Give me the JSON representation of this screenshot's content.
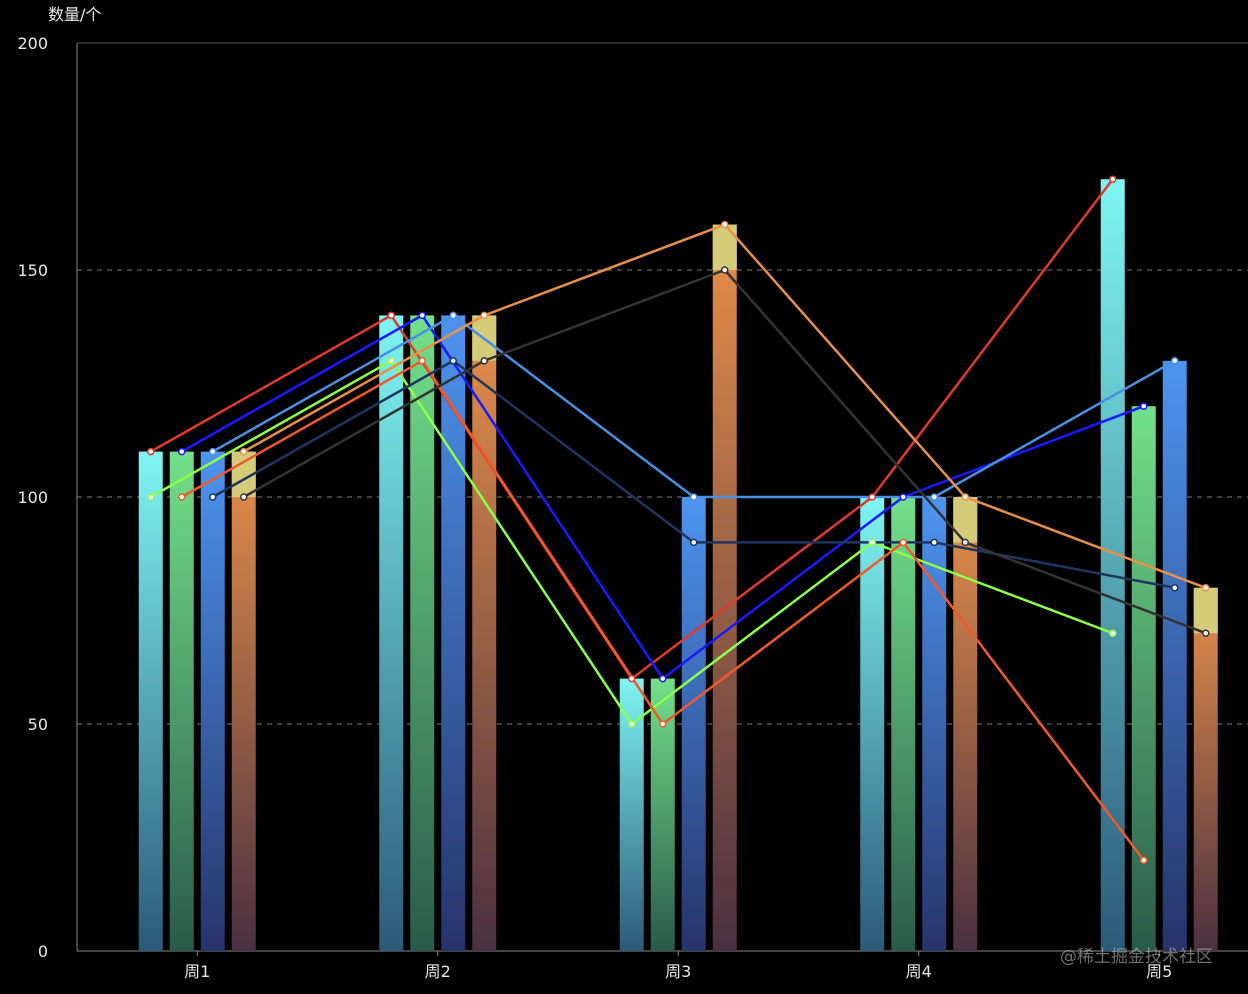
{
  "chart_data": {
    "type": "bar",
    "ylabel": "数量/个",
    "ylim": [
      0,
      200
    ],
    "yticks": [
      0,
      50,
      100,
      150,
      200
    ],
    "categories": [
      "周1",
      "周2",
      "周3",
      "周4",
      "周5"
    ],
    "grid": true,
    "bar_series": [
      {
        "values": [
          110,
          140,
          60,
          100,
          170
        ],
        "top_color": "#7ff5f2",
        "bottom_color": "#2c5a78",
        "bright_top": [
          100,
          0,
          0,
          100,
          70
        ]
      },
      {
        "values": [
          110,
          140,
          60,
          100,
          120
        ],
        "top_color": "#73e08a",
        "bottom_color": "#2a5a4a",
        "bright_top": [
          0,
          0,
          0,
          0,
          0
        ]
      },
      {
        "values": [
          110,
          140,
          100,
          100,
          130
        ],
        "top_color": "#4d94f0",
        "bottom_color": "#27346a",
        "bright_top": [
          0,
          0,
          0,
          0,
          0
        ]
      },
      {
        "values": [
          110,
          140,
          160,
          100,
          80
        ],
        "top_color": "#e8904a",
        "bottom_color": "#4a3040",
        "cap_color": "#d4cc78",
        "cap_to": [
          100,
          130,
          150,
          90,
          70
        ]
      }
    ],
    "line_series": [
      {
        "color": "#e03a2a",
        "values": [
          110,
          140,
          60,
          100,
          170
        ],
        "slot": 0
      },
      {
        "color": "#8cff4a",
        "values": [
          100,
          130,
          50,
          90,
          70
        ],
        "slot": 0
      },
      {
        "color": "#1a1aff",
        "values": [
          110,
          140,
          60,
          100,
          120
        ],
        "slot": 1
      },
      {
        "color": "#f05a2a",
        "values": [
          100,
          130,
          50,
          90,
          20
        ],
        "slot": 1
      },
      {
        "color": "#4a90e2",
        "values": [
          110,
          140,
          100,
          100,
          130
        ],
        "slot": 2
      },
      {
        "color": "#1e3560",
        "values": [
          100,
          130,
          90,
          90,
          80
        ],
        "slot": 2
      },
      {
        "color": "#e8904a",
        "values": [
          110,
          140,
          160,
          100,
          80
        ],
        "slot": 3
      },
      {
        "color": "#333333",
        "values": [
          100,
          130,
          150,
          90,
          70
        ],
        "slot": 3
      }
    ]
  },
  "watermark": "@稀土掘金技术社区"
}
